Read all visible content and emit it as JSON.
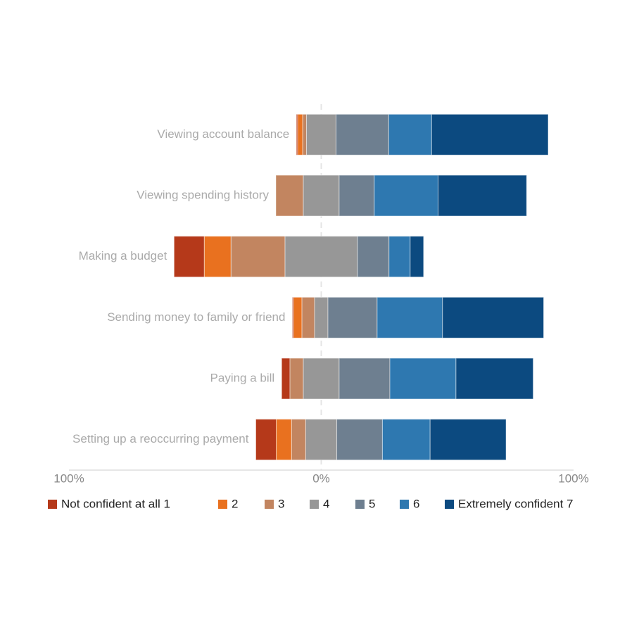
{
  "chart_data": {
    "type": "bar",
    "orientation": "horizontal",
    "stacked": true,
    "diverging": true,
    "categories": [
      "Viewing account balance",
      "Viewing spending history",
      "Making a budget",
      "Sending money to family or friend",
      "Paying a bill",
      "Setting up a reoccurring payment"
    ],
    "series": [
      {
        "name": "Not confident at all 1",
        "color": "#b5391a",
        "values": [
          0.5,
          0,
          12,
          0.5,
          3.3,
          8.1
        ]
      },
      {
        "name": "2",
        "color": "#e9711f",
        "values": [
          2,
          0,
          10.6,
          3.3,
          0,
          6.1
        ]
      },
      {
        "name": "3",
        "color": "#c28560",
        "values": [
          1.5,
          10.9,
          21.4,
          5,
          5.3,
          5.6
        ]
      },
      {
        "name": "4",
        "color": "#979797",
        "values": [
          11.7,
          14.2,
          28.7,
          5.3,
          14.2,
          12.3
        ]
      },
      {
        "name": "5",
        "color": "#6e7f90",
        "values": [
          20.9,
          13.9,
          12.5,
          19.5,
          20.1,
          18.1
        ]
      },
      {
        "name": "6",
        "color": "#2e78b0",
        "values": [
          17,
          25.3,
          8.4,
          25.9,
          26.2,
          18.9
        ]
      },
      {
        "name": "Extremely confident 7",
        "color": "#0c4a80",
        "values": [
          46.2,
          35.1,
          5.3,
          40.1,
          30.6,
          30.1
        ]
      }
    ],
    "xlim": [
      -100,
      100
    ],
    "xticks": [
      {
        "value": -100,
        "label": "100%"
      },
      {
        "value": 0,
        "label": "0%"
      },
      {
        "value": 100,
        "label": "100%"
      }
    ],
    "legend": "bottom"
  }
}
